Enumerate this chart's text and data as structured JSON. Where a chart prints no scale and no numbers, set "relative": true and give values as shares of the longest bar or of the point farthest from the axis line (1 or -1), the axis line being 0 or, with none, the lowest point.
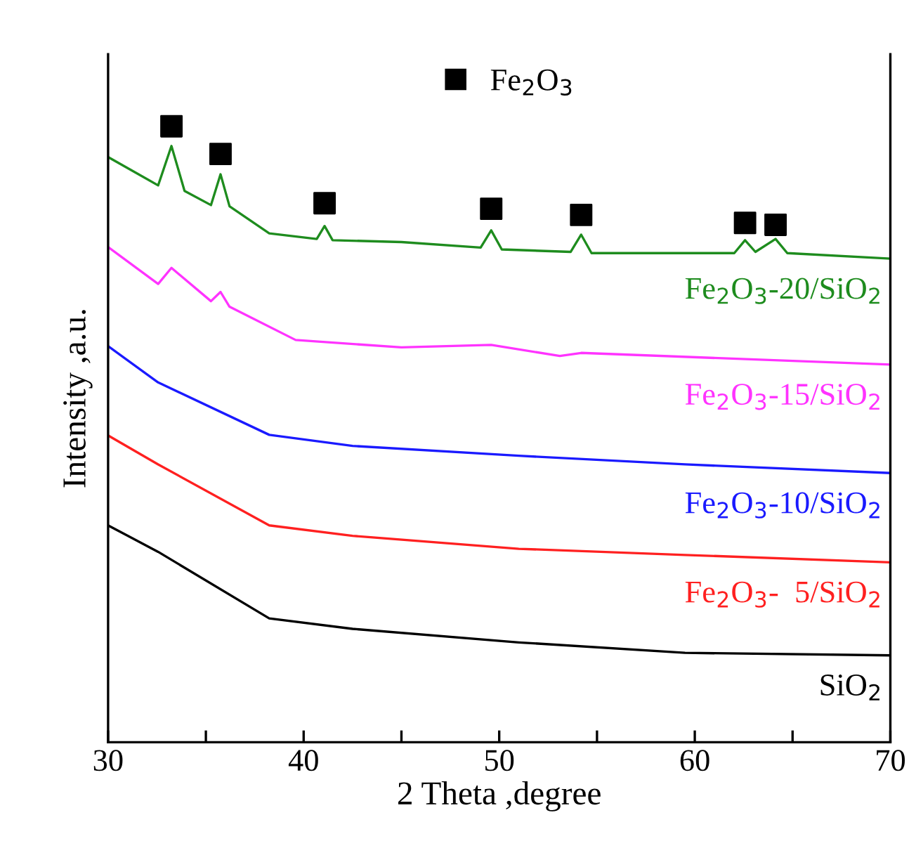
{
  "chart_data": {
    "type": "line",
    "relative": true,
    "xlabel": "2 Theta ,degree",
    "ylabel": "Intensity ,a.u.",
    "xlim": [
      30,
      70
    ],
    "xticks": [
      30,
      {
        "value": 35,
        "label": null
      },
      40,
      {
        "value": 45,
        "label": null
      },
      50,
      {
        "value": 55,
        "label": null
      },
      60,
      {
        "value": 65,
        "label": null
      },
      70
    ],
    "legend": "top",
    "grid": false,
    "tick_labels": "x",
    "series": [
      {
        "name": "Fe$_{2}$O$_{3}$-20/SiO$_{2}$",
        "color": "#1e8c1e",
        "x": [
          30,
          32.56,
          33.24,
          33.91,
          35.26,
          35.75,
          36.21,
          38.24,
          40.67,
          41.07,
          41.48,
          45.0,
          49.05,
          49.59,
          50.13,
          53.65,
          54.19,
          54.72,
          62.02,
          62.57,
          63.1,
          64.13,
          64.73,
          70
        ],
        "values": [
          0.95,
          0.904,
          0.968,
          0.895,
          0.872,
          0.922,
          0.87,
          0.826,
          0.817,
          0.838,
          0.815,
          0.812,
          0.803,
          0.831,
          0.8,
          0.796,
          0.824,
          0.794,
          0.794,
          0.815,
          0.796,
          0.817,
          0.794,
          0.785
        ]
      },
      {
        "name": "Fe$_{2}$O$_{3}$-15/SiO$_{2}$",
        "color": "#ff33ff",
        "x": [
          30,
          32.56,
          33.24,
          35.26,
          35.75,
          36.21,
          39.59,
          45.0,
          49.59,
          53.1,
          54.19,
          70
        ],
        "values": [
          0.804,
          0.744,
          0.77,
          0.716,
          0.731,
          0.707,
          0.653,
          0.641,
          0.645,
          0.627,
          0.632,
          0.613
        ]
      },
      {
        "name": "Fe$_{2}$O$_{3}$-10/SiO$_{2}$",
        "color": "#1a1aff",
        "x": [
          30,
          32.56,
          38.24,
          42.5,
          51.0,
          59.5,
          70
        ],
        "values": [
          0.643,
          0.584,
          0.499,
          0.481,
          0.465,
          0.451,
          0.437
        ]
      },
      {
        "name": "Fe$_{2}$O$_{3}$-  5/SiO$_{2}$",
        "color": "#ff2020",
        "x": [
          30,
          32.56,
          38.24,
          42.5,
          51.0,
          59.5,
          70
        ],
        "values": [
          0.498,
          0.451,
          0.352,
          0.335,
          0.314,
          0.304,
          0.292
        ]
      },
      {
        "name": "SiO$_{2}$",
        "color": "#000000",
        "x": [
          30,
          32.56,
          38.24,
          42.5,
          51.0,
          59.5,
          70
        ],
        "values": [
          0.352,
          0.309,
          0.201,
          0.184,
          0.162,
          0.145,
          0.141
        ]
      },
      {
        "name": "Fe$_{2}$O$_{3}$",
        "type": "scatter",
        "marker": "square",
        "color": "#000000",
        "x": [
          33.24,
          35.75,
          41.07,
          49.59,
          54.19,
          62.57,
          64.13
        ],
        "values": [
          1.0,
          0.955,
          0.875,
          0.866,
          0.856,
          0.843,
          0.84
        ]
      }
    ]
  }
}
